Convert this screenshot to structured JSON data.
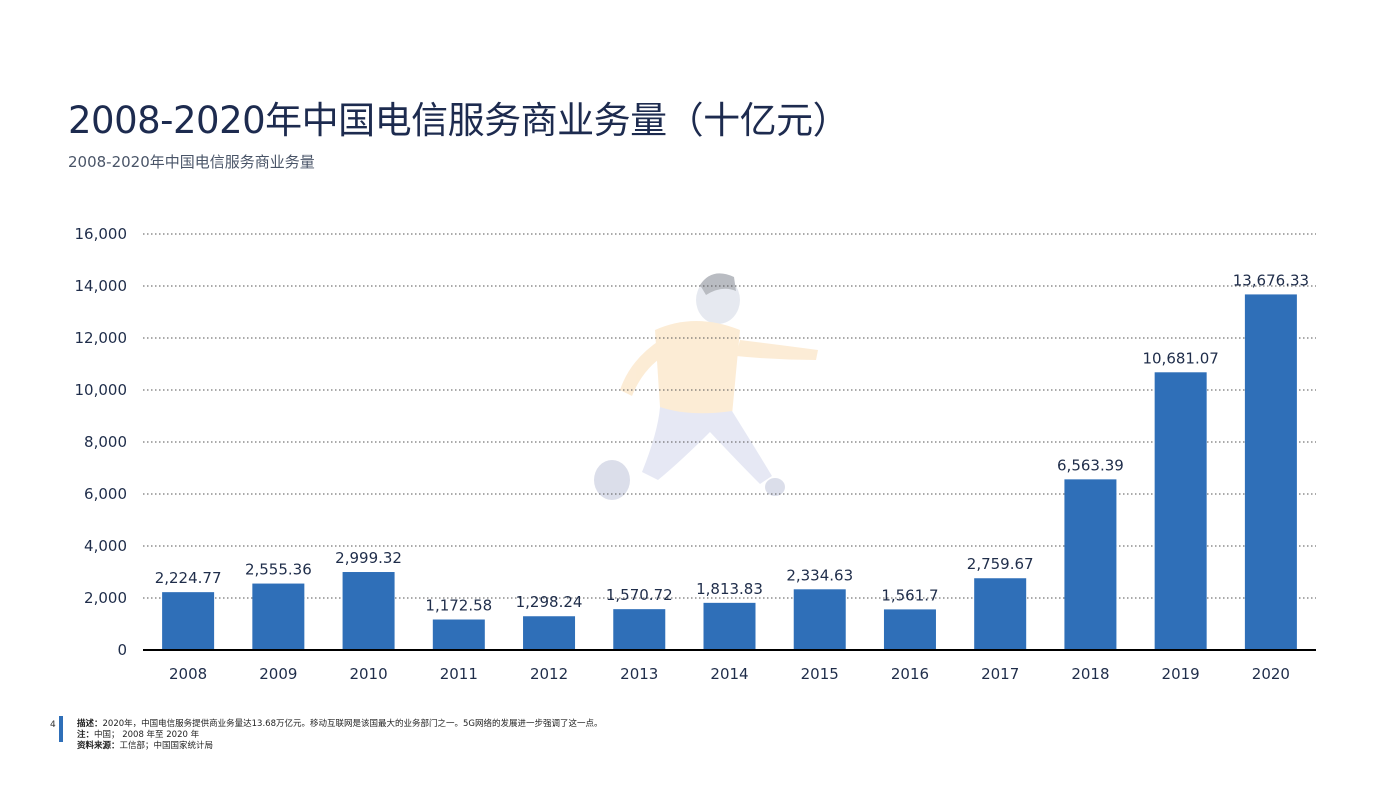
{
  "title": "2008-2020年中国电信服务商业务量（十亿元）",
  "subtitle": "2008-2020年中国电信服务商业务量",
  "page_number": "4",
  "notes": {
    "description_label": "描述：",
    "description": "2020年，中国电信服务提供商业务量达13.68万亿元。移动互联网是该国最大的业务部门之一。5G网络的发展进一步强调了这一点。",
    "note_label": "注：",
    "note": "中国； 2008 年至 2020 年",
    "source_label": "资料来源：",
    "source": "工信部；中国国家统计局"
  },
  "colors": {
    "bar": "#2f6fb8",
    "axis": "#000000",
    "grid": "#555555"
  },
  "chart_data": {
    "type": "bar",
    "categories": [
      "2008",
      "2009",
      "2010",
      "2011",
      "2012",
      "2013",
      "2014",
      "2015",
      "2016",
      "2017",
      "2018",
      "2019",
      "2020"
    ],
    "values": [
      2224.77,
      2555.36,
      2999.32,
      1172.58,
      1298.24,
      1570.72,
      1813.83,
      2334.63,
      1561.7,
      2759.67,
      6563.39,
      10681.07,
      13676.33
    ],
    "data_labels": [
      "2,224.77",
      "2,555.36",
      "2,999.32",
      "1,172.58",
      "1,298.24",
      "1,570.72",
      "1,813.83",
      "2,334.63",
      "1,561.7",
      "2,759.67",
      "6,563.39",
      "10,681.07",
      "13,676.33"
    ],
    "yticks": [
      0,
      2000,
      4000,
      6000,
      8000,
      10000,
      12000,
      14000,
      16000
    ],
    "ytick_labels": [
      "0",
      "2,000",
      "4,000",
      "6,000",
      "8,000",
      "10,000",
      "12,000",
      "14,000",
      "16,000"
    ],
    "ylim": [
      0,
      16000
    ],
    "grid": true,
    "legend": "none"
  }
}
